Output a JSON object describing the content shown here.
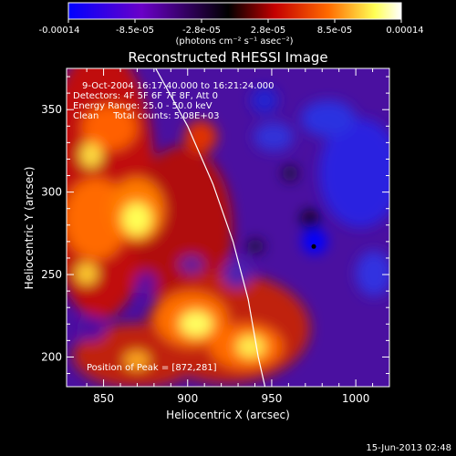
{
  "chart_data": {
    "type": "heatmap",
    "title": "Reconstructed RHESSI Image",
    "xlabel": "Heliocentric X (arcsec)",
    "ylabel": "Heliocentric Y (arcsec)",
    "xlim": [
      828,
      1020
    ],
    "ylim": [
      182,
      375
    ],
    "x_ticks": [
      850,
      900,
      950,
      1000
    ],
    "y_ticks": [
      200,
      250,
      300,
      350
    ],
    "colorbar": {
      "min": -0.00014,
      "max": 0.00014,
      "tick_labels": [
        "-0.00014",
        "-8.5e-05",
        "-2.8e-05",
        "2.8e-05",
        "8.5e-05",
        "0.00014"
      ],
      "units_label": "(photons cm⁻² s⁻¹ asec⁻²)",
      "colors": [
        "#0000ff",
        "#7a00c8",
        "#000000",
        "#cc0000",
        "#ff6a00",
        "#ffff55",
        "#ffffff"
      ]
    },
    "annotations": [
      "9-Oct-2004 16:17:40.000 to 16:21:24.000",
      "Detectors: 4F 5F 6F 7F 8F, Att 0",
      "Energy Range: 25.0 - 50.0 keV",
      "Clean     Total counts: 5.08E+03"
    ],
    "peak_label": "Position of Peak = [872,281]",
    "peak": [
      872,
      281
    ],
    "marker": [
      975,
      267
    ],
    "limb_curve": [
      [
        881,
        375
      ],
      [
        900,
        340
      ],
      [
        915,
        305
      ],
      [
        927,
        270
      ],
      [
        936,
        235
      ],
      [
        942,
        200
      ],
      [
        946,
        182
      ]
    ],
    "grid": false
  },
  "footer": {
    "date": "15-Jun-2013 02:48"
  }
}
